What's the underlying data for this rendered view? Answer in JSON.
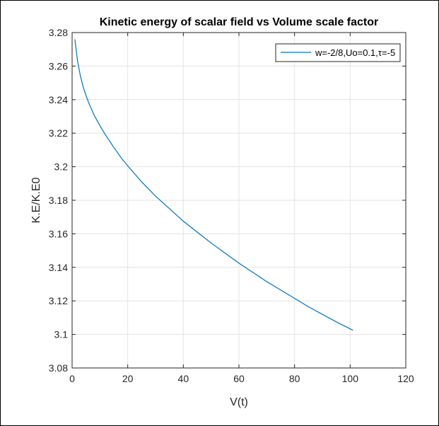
{
  "chart_data": {
    "type": "line",
    "title": "Kinetic energy of scalar field vs Volume scale factor",
    "xlabel": "V(t)",
    "ylabel": "K.E/K.E0",
    "xlim": [
      0,
      120
    ],
    "ylim": [
      3.08,
      3.28
    ],
    "xticks": [
      0,
      20,
      40,
      60,
      80,
      100,
      120
    ],
    "yticks": [
      3.08,
      3.1,
      3.12,
      3.14,
      3.16,
      3.18,
      3.2,
      3.22,
      3.24,
      3.26,
      3.28
    ],
    "ytick_labels": [
      "3.08",
      "3.1",
      "3.12",
      "3.14",
      "3.16",
      "3.18",
      "3.2",
      "3.22",
      "3.24",
      "3.26",
      "3.28"
    ],
    "grid": true,
    "legend_position": "top-right",
    "series": [
      {
        "name": "w=-2/8,Uo=0.1,τ=-5",
        "color": "#0072BD",
        "x": [
          1,
          2,
          3,
          4,
          5,
          6,
          8,
          10,
          12,
          15,
          18,
          20,
          25,
          30,
          35,
          40,
          45,
          50,
          55,
          60,
          65,
          70,
          75,
          80,
          85,
          90,
          95,
          101
        ],
        "y": [
          3.276,
          3.2625,
          3.254,
          3.2475,
          3.2425,
          3.238,
          3.2305,
          3.2245,
          3.219,
          3.2115,
          3.2045,
          3.2005,
          3.191,
          3.1825,
          3.175,
          3.1675,
          3.161,
          3.1545,
          3.1485,
          3.1425,
          3.137,
          3.1315,
          3.1265,
          3.1215,
          3.1165,
          3.112,
          3.1075,
          3.1025
        ]
      }
    ]
  }
}
